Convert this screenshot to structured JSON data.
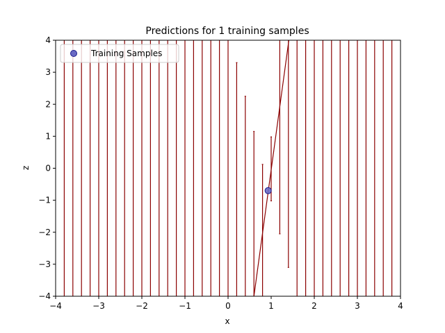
{
  "chart_data": {
    "type": "scatter",
    "title": "Predictions for 1 training samples",
    "xlabel": "x",
    "ylabel": "z",
    "xlim": [
      -4,
      4
    ],
    "ylim": [
      -4,
      4
    ],
    "xticks": [
      "−4",
      "−3",
      "−2",
      "−1",
      "0",
      "1",
      "2",
      "3",
      "4"
    ],
    "yticks": [
      "−4",
      "−3",
      "−2",
      "−1",
      "0",
      "1",
      "2",
      "3",
      "4"
    ],
    "grid": false,
    "legend": {
      "placement": "top-left",
      "entries": [
        "Training Samples"
      ]
    },
    "colors": {
      "training": "#6a6ac4",
      "training_edge": "#1c1c8c",
      "prediction": "#8b0000",
      "spine": "#000000"
    },
    "series": [
      {
        "name": "Training Samples",
        "type": "scatter",
        "points": [
          {
            "x": 0.93,
            "y": -0.7
          }
        ]
      },
      {
        "type": "line",
        "points": [
          {
            "x": 0.6,
            "y": -4.0
          },
          {
            "x": 1.41,
            "y": 4.0
          }
        ]
      },
      {
        "type": "errorbar",
        "bars": [
          {
            "x": -3.8,
            "low": -4.0,
            "high": 4.0
          },
          {
            "x": -3.6,
            "low": -4.0,
            "high": 4.0
          },
          {
            "x": -3.4,
            "low": -4.0,
            "high": 4.0
          },
          {
            "x": -3.2,
            "low": -4.0,
            "high": 4.0
          },
          {
            "x": -3.0,
            "low": -4.0,
            "high": 4.0
          },
          {
            "x": -2.8,
            "low": -4.0,
            "high": 4.0
          },
          {
            "x": -2.6,
            "low": -4.0,
            "high": 4.0
          },
          {
            "x": -2.4,
            "low": -4.0,
            "high": 4.0
          },
          {
            "x": -2.2,
            "low": -4.0,
            "high": 4.0
          },
          {
            "x": -2.0,
            "low": -4.0,
            "high": 4.0
          },
          {
            "x": -1.8,
            "low": -4.0,
            "high": 4.0
          },
          {
            "x": -1.6,
            "low": -4.0,
            "high": 4.0
          },
          {
            "x": -1.4,
            "low": -4.0,
            "high": 4.0
          },
          {
            "x": -1.2,
            "low": -4.0,
            "high": 4.0
          },
          {
            "x": -1.0,
            "low": -4.0,
            "high": 4.0
          },
          {
            "x": -0.8,
            "low": -4.0,
            "high": 4.0
          },
          {
            "x": -0.6,
            "low": -4.0,
            "high": 4.0
          },
          {
            "x": -0.4,
            "low": -4.0,
            "high": 4.0
          },
          {
            "x": -0.2,
            "low": -4.0,
            "high": 4.0
          },
          {
            "x": 0.0,
            "low": -4.0,
            "high": 4.0
          },
          {
            "x": 0.2,
            "low": -4.0,
            "high": 3.3
          },
          {
            "x": 0.4,
            "low": -4.0,
            "high": 2.25
          },
          {
            "x": 0.6,
            "low": -4.0,
            "high": 1.15
          },
          {
            "x": 0.8,
            "low": -4.0,
            "high": 0.12
          },
          {
            "x": 1.0,
            "low": -1.02,
            "high": 0.98
          },
          {
            "x": 1.2,
            "low": -2.05,
            "high": 4.0
          },
          {
            "x": 1.4,
            "low": -3.1,
            "high": 4.0
          },
          {
            "x": 1.6,
            "low": -4.0,
            "high": 4.0
          },
          {
            "x": 1.8,
            "low": -4.0,
            "high": 4.0
          },
          {
            "x": 2.0,
            "low": -4.0,
            "high": 4.0
          },
          {
            "x": 2.2,
            "low": -4.0,
            "high": 4.0
          },
          {
            "x": 2.4,
            "low": -4.0,
            "high": 4.0
          },
          {
            "x": 2.6,
            "low": -4.0,
            "high": 4.0
          },
          {
            "x": 2.8,
            "low": -4.0,
            "high": 4.0
          },
          {
            "x": 3.0,
            "low": -4.0,
            "high": 4.0
          },
          {
            "x": 3.2,
            "low": -4.0,
            "high": 4.0
          },
          {
            "x": 3.4,
            "low": -4.0,
            "high": 4.0
          },
          {
            "x": 3.6,
            "low": -4.0,
            "high": 4.0
          },
          {
            "x": 3.8,
            "low": -4.0,
            "high": 4.0
          }
        ]
      }
    ]
  }
}
